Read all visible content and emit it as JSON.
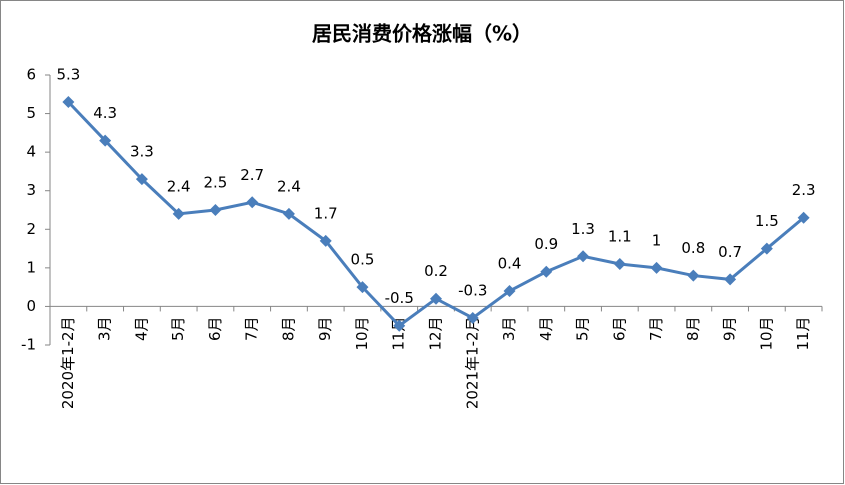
{
  "chart_data": {
    "type": "line",
    "title": "居民消费价格涨幅（%）",
    "categories": [
      "2020年1-2月",
      "3月",
      "4月",
      "5月",
      "6月",
      "7月",
      "8月",
      "9月",
      "10月",
      "11月",
      "12月",
      "2021年1-2月",
      "3月",
      "4月",
      "5月",
      "6月",
      "7月",
      "8月",
      "9月",
      "10月",
      "11月"
    ],
    "values": [
      5.3,
      4.3,
      3.3,
      2.4,
      2.5,
      2.7,
      2.4,
      1.7,
      0.5,
      -0.5,
      0.2,
      -0.3,
      0.4,
      0.9,
      1.3,
      1.1,
      1,
      0.8,
      0.7,
      1.5,
      2.3
    ],
    "color": "#4a7ebb",
    "ylim": [
      -1,
      6
    ],
    "yticks": [
      -1,
      0,
      1,
      2,
      3,
      4,
      5,
      6
    ],
    "grid": false
  }
}
